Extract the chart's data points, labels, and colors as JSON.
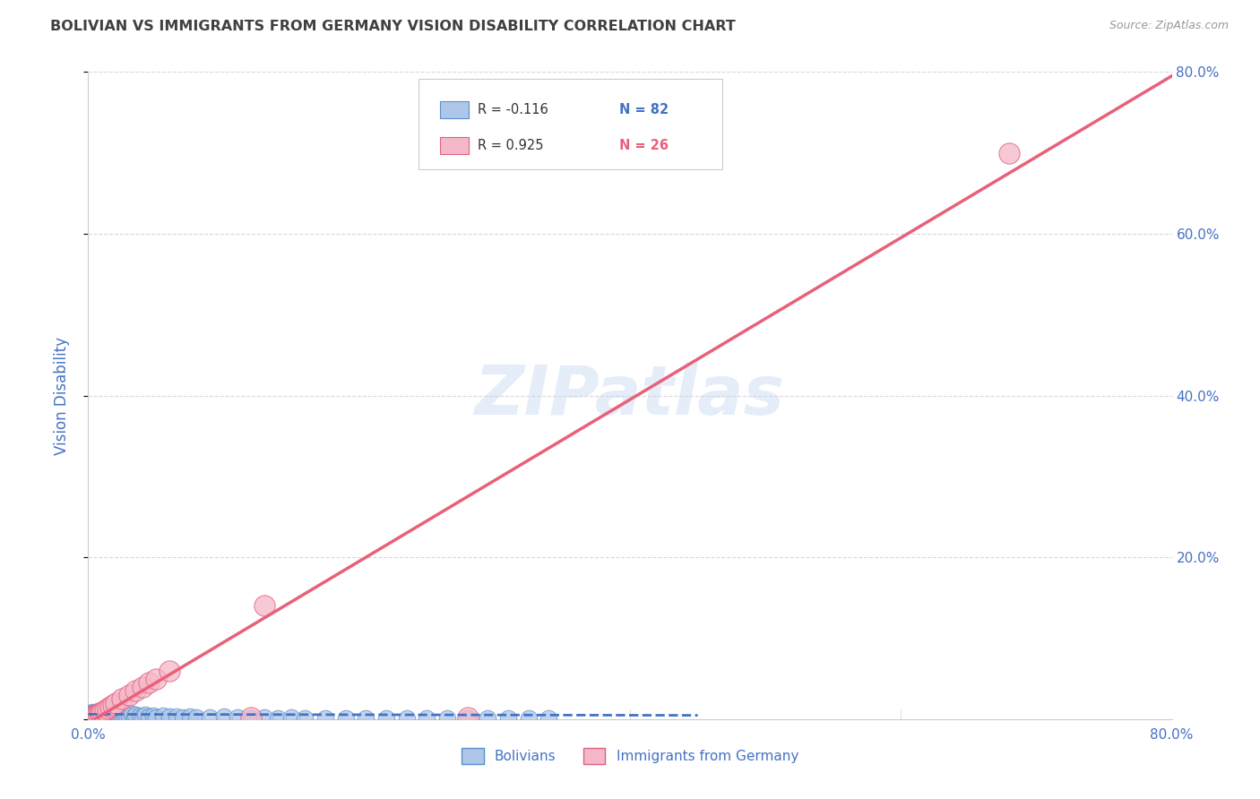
{
  "title": "BOLIVIAN VS IMMIGRANTS FROM GERMANY VISION DISABILITY CORRELATION CHART",
  "source": "Source: ZipAtlas.com",
  "ylabel": "Vision Disability",
  "xlim": [
    0.0,
    0.8
  ],
  "ylim": [
    0.0,
    0.8
  ],
  "bolivians_color": "#aec6e8",
  "bolivia_edge_color": "#5b8fc9",
  "germany_color": "#f5b8c8",
  "germany_edge_color": "#e06080",
  "trendline_bolivians_color": "#4472c4",
  "trendline_germany_color": "#e8607a",
  "R_bolivians": "-0.116",
  "N_bolivians": "82",
  "R_germany": "0.925",
  "N_germany": "26",
  "watermark": "ZIPatlas",
  "background_color": "#ffffff",
  "grid_color": "#d8d8d8",
  "title_color": "#404040",
  "axis_label_color": "#4472c4",
  "tick_color": "#4472c4",
  "legend_label_bolivians": "Bolivians",
  "legend_label_germany": "Immigrants from Germany",
  "bolivians_x": [
    0.001,
    0.002,
    0.002,
    0.003,
    0.003,
    0.003,
    0.004,
    0.004,
    0.005,
    0.005,
    0.005,
    0.006,
    0.006,
    0.007,
    0.007,
    0.007,
    0.008,
    0.008,
    0.009,
    0.009,
    0.01,
    0.01,
    0.01,
    0.011,
    0.011,
    0.012,
    0.012,
    0.013,
    0.013,
    0.014,
    0.014,
    0.015,
    0.015,
    0.016,
    0.017,
    0.018,
    0.019,
    0.02,
    0.021,
    0.022,
    0.023,
    0.024,
    0.025,
    0.026,
    0.027,
    0.028,
    0.03,
    0.032,
    0.034,
    0.035,
    0.038,
    0.04,
    0.042,
    0.045,
    0.048,
    0.05,
    0.055,
    0.06,
    0.065,
    0.07,
    0.075,
    0.08,
    0.09,
    0.1,
    0.11,
    0.12,
    0.13,
    0.14,
    0.15,
    0.16,
    0.175,
    0.19,
    0.205,
    0.22,
    0.235,
    0.25,
    0.265,
    0.28,
    0.295,
    0.31,
    0.325,
    0.34
  ],
  "bolivians_y": [
    0.005,
    0.008,
    0.004,
    0.006,
    0.009,
    0.003,
    0.007,
    0.005,
    0.004,
    0.008,
    0.006,
    0.005,
    0.007,
    0.004,
    0.006,
    0.009,
    0.003,
    0.007,
    0.005,
    0.008,
    0.004,
    0.006,
    0.009,
    0.003,
    0.007,
    0.005,
    0.008,
    0.004,
    0.006,
    0.003,
    0.007,
    0.005,
    0.009,
    0.004,
    0.006,
    0.003,
    0.007,
    0.005,
    0.004,
    0.008,
    0.003,
    0.006,
    0.004,
    0.007,
    0.003,
    0.005,
    0.004,
    0.006,
    0.003,
    0.005,
    0.004,
    0.003,
    0.005,
    0.003,
    0.004,
    0.002,
    0.004,
    0.003,
    0.003,
    0.002,
    0.003,
    0.002,
    0.002,
    0.003,
    0.002,
    0.001,
    0.002,
    0.001,
    0.002,
    0.001,
    0.001,
    0.001,
    0.001,
    0.001,
    0.001,
    0.001,
    0.001,
    0.001,
    0.001,
    0.001,
    0.001,
    0.001
  ],
  "germany_x": [
    0.001,
    0.002,
    0.003,
    0.004,
    0.005,
    0.006,
    0.007,
    0.008,
    0.009,
    0.01,
    0.012,
    0.014,
    0.016,
    0.018,
    0.02,
    0.025,
    0.03,
    0.035,
    0.04,
    0.045,
    0.05,
    0.06,
    0.12,
    0.13,
    0.28,
    0.68
  ],
  "germany_y": [
    0.001,
    0.002,
    0.003,
    0.003,
    0.004,
    0.005,
    0.006,
    0.007,
    0.008,
    0.009,
    0.011,
    0.013,
    0.015,
    0.017,
    0.02,
    0.025,
    0.03,
    0.035,
    0.04,
    0.045,
    0.05,
    0.06,
    0.002,
    0.14,
    0.002,
    0.7
  ],
  "b_slope": -0.003,
  "b_intercept": 0.006,
  "g_slope": 1.0,
  "g_intercept": -0.005
}
